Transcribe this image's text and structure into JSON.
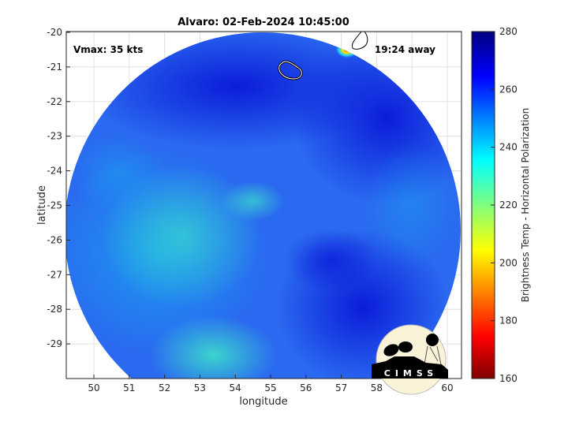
{
  "title": "Alvaro: 02-Feb-2024 10:45:00",
  "annotations": {
    "vmax": "Vmax: 35 kts",
    "away": "19:24 away"
  },
  "xaxis": {
    "label": "longitude",
    "ticks": [
      "50",
      "51",
      "52",
      "53",
      "54",
      "55",
      "56",
      "57",
      "58",
      "59",
      "60"
    ]
  },
  "yaxis": {
    "label": "latitude",
    "ticks": [
      "-20",
      "-21",
      "-22",
      "-23",
      "-24",
      "-25",
      "-26",
      "-27",
      "-28",
      "-29"
    ]
  },
  "colorbar": {
    "label": "Brightness Temp - Horizontal Polarization",
    "ticks": [
      "280",
      "260",
      "240",
      "220",
      "200",
      "180",
      "160"
    ],
    "range": [
      160,
      280
    ],
    "colormap": "jet"
  },
  "logo": {
    "text": "CIMSS"
  }
}
